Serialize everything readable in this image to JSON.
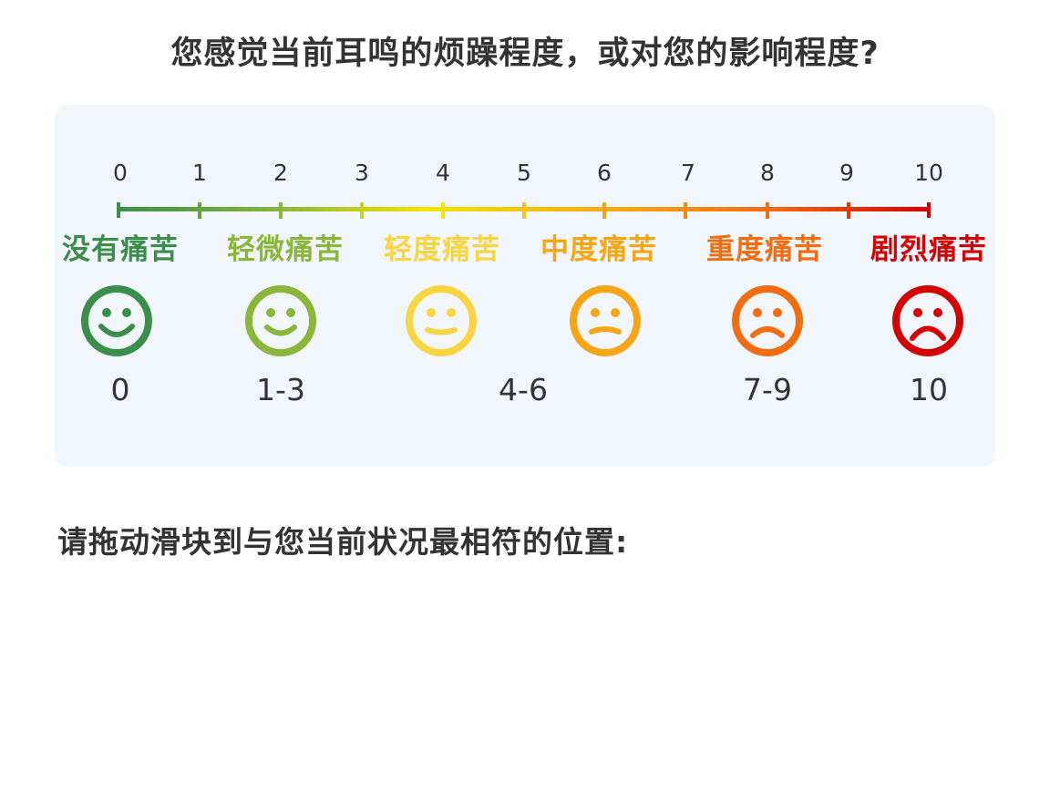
{
  "question": "您感觉当前耳鸣的烦躁程度，或对您的影响程度?",
  "scale": {
    "tick_numbers": [
      "0",
      "1",
      "2",
      "3",
      "4",
      "5",
      "6",
      "7",
      "8",
      "9",
      "10"
    ],
    "categories": [
      {
        "label": "没有痛苦",
        "color": "#3b8e4a"
      },
      {
        "label": "轻微痛苦",
        "color": "#8ab63a"
      },
      {
        "label": "轻度痛苦",
        "color": "#fbd442"
      },
      {
        "label": "中度痛苦",
        "color": "#f7a515"
      },
      {
        "label": "重度痛苦",
        "color": "#f26d0f"
      },
      {
        "label": "剧烈痛苦",
        "color": "#d50000"
      }
    ],
    "faces": [
      {
        "icon": "happy-face-icon",
        "color": "#3b8e4a",
        "range": "0"
      },
      {
        "icon": "happy-face-icon",
        "color": "#8ab63a",
        "range": "1-3"
      },
      {
        "icon": "slight-smile-face-icon",
        "color": "#fbd442",
        "range": ""
      },
      {
        "icon": "neutral-face-icon",
        "color": "#f7a515",
        "range": "4-6"
      },
      {
        "icon": "sad-face-icon",
        "color": "#f26d0f",
        "range": "7-9"
      },
      {
        "icon": "very-sad-face-icon",
        "color": "#d50000",
        "range": "10"
      }
    ],
    "gradient_colors": [
      "#3b8e4a",
      "#8ab63a",
      "#f3e500",
      "#f7a515",
      "#f26d0f",
      "#d50000"
    ]
  },
  "instruction": "请拖动滑块到与您当前状况最相符的位置:"
}
